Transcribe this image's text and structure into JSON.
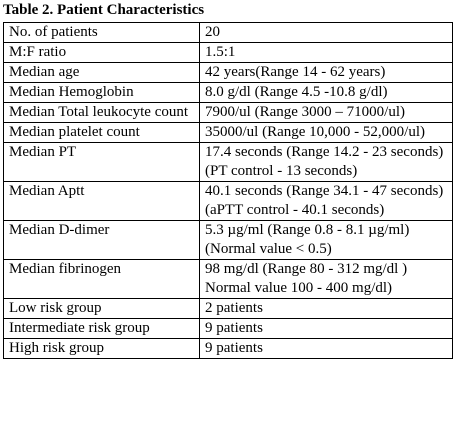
{
  "title": "Table 2. Patient Characteristics",
  "table": {
    "rows": [
      [
        "No. of patients",
        [
          "20"
        ]
      ],
      [
        "M:F ratio",
        [
          "1.5:1"
        ]
      ],
      [
        "Median age",
        [
          "42 years(Range 14 - 62 years)"
        ]
      ],
      [
        "Median Hemoglobin",
        [
          "8.0 g/dl (Range 4.5 -10.8 g/dl)"
        ]
      ],
      [
        "Median Total leukocyte count",
        [
          "7900/ul (Range 3000 – 71000/ul)"
        ]
      ],
      [
        "Median platelet count",
        [
          "35000/ul (Range 10,000 - 52,000/ul)"
        ]
      ],
      [
        "Median PT",
        [
          "17.4 seconds (Range  14.2 - 23 seconds)",
          " (PT control - 13 seconds)"
        ]
      ],
      [
        "Median Aptt",
        [
          "40.1 seconds (Range  34.1 - 47 seconds)",
          "(aPTT control - 40.1 seconds)"
        ]
      ],
      [
        "Median D-dimer",
        [
          "5.3 µg/ml (Range  0.8 - 8.1 µg/ml)",
          "(Normal value < 0.5)"
        ]
      ],
      [
        "Median fibrinogen",
        [
          "98 mg/dl (Range  80 - 312 mg/dl )",
          "Normal value 100 - 400 mg/dl)"
        ]
      ],
      [
        "Low risk group",
        [
          "2 patients"
        ]
      ],
      [
        "Intermediate risk group",
        [
          "9 patients"
        ]
      ],
      [
        "High risk group",
        [
          "9 patients"
        ]
      ]
    ]
  }
}
